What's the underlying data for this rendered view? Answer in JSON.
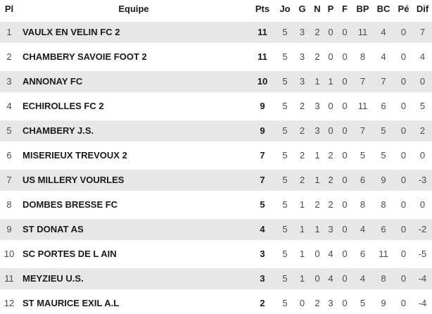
{
  "table": {
    "columns": {
      "pl": "Pl",
      "equipe": "Equipe",
      "pts": "Pts",
      "jo": "Jo",
      "g": "G",
      "n": "N",
      "p": "P",
      "f": "F",
      "bp": "BP",
      "bc": "BC",
      "pe": "Pé",
      "dif": "Dif"
    },
    "rows": [
      {
        "pl": "1",
        "equipe": "VAULX EN VELIN FC 2",
        "pts": "11",
        "jo": "5",
        "g": "3",
        "n": "2",
        "p": "0",
        "f": "0",
        "bp": "11",
        "bc": "4",
        "pe": "0",
        "dif": "7"
      },
      {
        "pl": "2",
        "equipe": "CHAMBERY SAVOIE FOOT 2",
        "pts": "11",
        "jo": "5",
        "g": "3",
        "n": "2",
        "p": "0",
        "f": "0",
        "bp": "8",
        "bc": "4",
        "pe": "0",
        "dif": "4"
      },
      {
        "pl": "3",
        "equipe": "ANNONAY FC",
        "pts": "10",
        "jo": "5",
        "g": "3",
        "n": "1",
        "p": "1",
        "f": "0",
        "bp": "7",
        "bc": "7",
        "pe": "0",
        "dif": "0"
      },
      {
        "pl": "4",
        "equipe": "ECHIROLLES FC 2",
        "pts": "9",
        "jo": "5",
        "g": "2",
        "n": "3",
        "p": "0",
        "f": "0",
        "bp": "11",
        "bc": "6",
        "pe": "0",
        "dif": "5"
      },
      {
        "pl": "5",
        "equipe": "CHAMBERY J.S.",
        "pts": "9",
        "jo": "5",
        "g": "2",
        "n": "3",
        "p": "0",
        "f": "0",
        "bp": "7",
        "bc": "5",
        "pe": "0",
        "dif": "2"
      },
      {
        "pl": "6",
        "equipe": "MISERIEUX TREVOUX 2",
        "pts": "7",
        "jo": "5",
        "g": "2",
        "n": "1",
        "p": "2",
        "f": "0",
        "bp": "5",
        "bc": "5",
        "pe": "0",
        "dif": "0"
      },
      {
        "pl": "7",
        "equipe": "US MILLERY VOURLES",
        "pts": "7",
        "jo": "5",
        "g": "2",
        "n": "1",
        "p": "2",
        "f": "0",
        "bp": "6",
        "bc": "9",
        "pe": "0",
        "dif": "-3"
      },
      {
        "pl": "8",
        "equipe": "DOMBES BRESSE FC",
        "pts": "5",
        "jo": "5",
        "g": "1",
        "n": "2",
        "p": "2",
        "f": "0",
        "bp": "8",
        "bc": "8",
        "pe": "0",
        "dif": "0"
      },
      {
        "pl": "9",
        "equipe": "ST DONAT AS",
        "pts": "4",
        "jo": "5",
        "g": "1",
        "n": "1",
        "p": "3",
        "f": "0",
        "bp": "4",
        "bc": "6",
        "pe": "0",
        "dif": "-2"
      },
      {
        "pl": "10",
        "equipe": "SC PORTES DE L AIN",
        "pts": "3",
        "jo": "5",
        "g": "1",
        "n": "0",
        "p": "4",
        "f": "0",
        "bp": "6",
        "bc": "11",
        "pe": "0",
        "dif": "-5"
      },
      {
        "pl": "11",
        "equipe": "MEYZIEU U.S.",
        "pts": "3",
        "jo": "5",
        "g": "1",
        "n": "0",
        "p": "4",
        "f": "0",
        "bp": "4",
        "bc": "8",
        "pe": "0",
        "dif": "-4"
      },
      {
        "pl": "12",
        "equipe": "ST MAURICE EXIL A.L",
        "pts": "2",
        "jo": "5",
        "g": "0",
        "n": "2",
        "p": "3",
        "f": "0",
        "bp": "5",
        "bc": "9",
        "pe": "0",
        "dif": "-4"
      }
    ]
  },
  "colors": {
    "stripe": "#e7e7e7",
    "text_strong": "#1a1a1a",
    "text_regular": "#4a4a4a",
    "background": "#ffffff"
  }
}
